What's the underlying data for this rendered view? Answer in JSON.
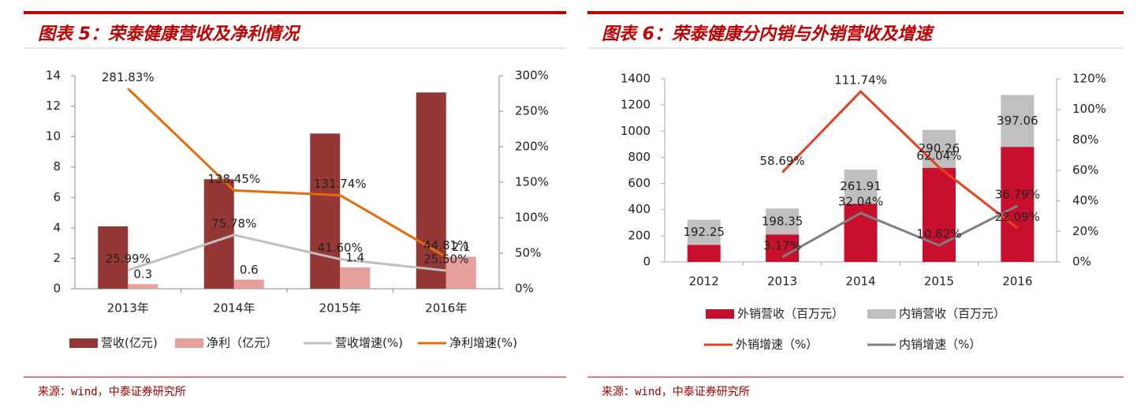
{
  "chart_data": [
    {
      "type": "bar",
      "title": "图表 5：荣泰健康营收及净利情况",
      "source": "来源：wind，中泰证券研究所",
      "categories": [
        "2013年",
        "2014年",
        "2015年",
        "2016年"
      ],
      "ylim": [
        0,
        14
      ],
      "yticks": [
        0,
        2,
        4,
        6,
        8,
        10,
        12,
        14
      ],
      "y2lim": [
        0,
        300
      ],
      "y2ticks": [
        {
          "value": 0,
          "label": "0%"
        },
        {
          "value": 50,
          "label": "50%"
        },
        {
          "value": 100,
          "label": "100%"
        },
        {
          "value": 150,
          "label": "150%"
        },
        {
          "value": 200,
          "label": "200%"
        },
        {
          "value": 250,
          "label": "250%"
        },
        {
          "value": 300,
          "label": "300%"
        }
      ],
      "stacked": false,
      "series": [
        {
          "name": "营收(亿元)",
          "type": "bar",
          "color": "#953735",
          "values": [
            4.1,
            7.2,
            10.2,
            12.9
          ]
        },
        {
          "name": "净利（亿元）",
          "type": "bar",
          "color": "#e6a09c",
          "values": [
            0.3,
            0.6,
            1.4,
            2.1
          ],
          "data_labels": true
        },
        {
          "name": "营收增速(%)",
          "type": "line",
          "axis": "y2",
          "color": "#bfbfbf",
          "values": [
            25.99,
            75.78,
            41.6,
            25.5
          ],
          "value_labels": [
            "25.99%",
            "75.78%",
            "41.60%",
            "25.50%"
          ]
        },
        {
          "name": "净利增速(%)",
          "type": "line",
          "axis": "y2",
          "color": "#e46c0a",
          "values": [
            281.83,
            138.45,
            131.74,
            44.81
          ],
          "value_labels": [
            "281.83%",
            "138.45%",
            "131.74%",
            "44.81%"
          ]
        }
      ]
    },
    {
      "type": "bar",
      "title": "图表 6：荣泰健康分内销与外销营收及增速",
      "source": "来源：wind，中泰证券研究所",
      "categories": [
        "2012",
        "2013",
        "2014",
        "2015",
        "2016"
      ],
      "ylim": [
        0,
        1400
      ],
      "yticks": [
        0,
        200,
        400,
        600,
        800,
        1000,
        1200,
        1400
      ],
      "y2lim": [
        0,
        120
      ],
      "y2ticks": [
        {
          "value": 0,
          "label": "0%"
        },
        {
          "value": 20,
          "label": "20%"
        },
        {
          "value": 40,
          "label": "40%"
        },
        {
          "value": 60,
          "label": "60%"
        },
        {
          "value": 80,
          "label": "80%"
        },
        {
          "value": 100,
          "label": "100%"
        },
        {
          "value": 120,
          "label": "120%"
        }
      ],
      "stacked": true,
      "series": [
        {
          "name": "外销营收（百万元）",
          "type": "bar",
          "color": "#c8102e",
          "values": [
            130,
            210,
            445,
            720,
            880
          ]
        },
        {
          "name": "内销营收（百万元）",
          "type": "bar",
          "color": "#bfbfbf",
          "values": [
            192.25,
            198.35,
            261.91,
            290.26,
            397.06
          ],
          "data_labels": true
        },
        {
          "name": "外销增速（%）",
          "type": "line",
          "axis": "y2",
          "color": "#e8401c",
          "values": [
            null,
            58.69,
            111.74,
            62.04,
            22.09
          ],
          "value_labels": [
            null,
            "58.69%",
            "111.74%",
            "62.04%",
            "22.09%"
          ]
        },
        {
          "name": "内销增速（%）",
          "type": "line",
          "axis": "y2",
          "color": "#7f7f7f",
          "values": [
            null,
            3.17,
            32.04,
            10.82,
            36.79
          ],
          "value_labels": [
            null,
            "3.17%",
            "32.04%",
            "10.82%",
            "36.79%"
          ]
        }
      ]
    }
  ]
}
